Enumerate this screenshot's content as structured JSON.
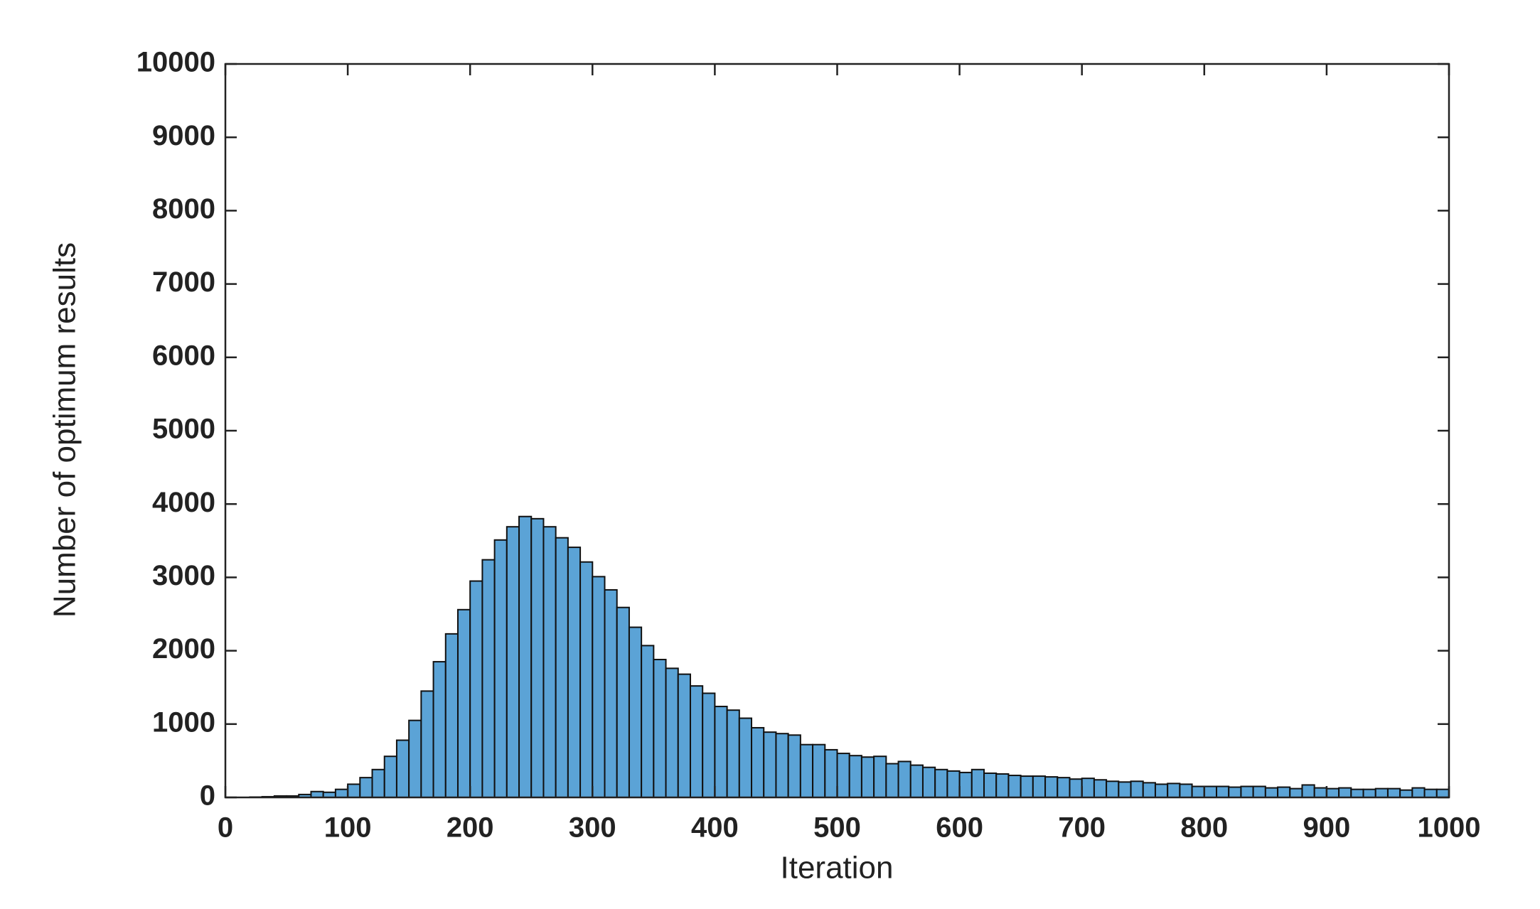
{
  "chart_data": {
    "type": "histogram",
    "xlabel": "Iteration",
    "ylabel": "Number of optimum results",
    "color": "#5ba3d6",
    "bins": [
      0,
      10,
      20,
      30,
      40,
      50,
      60,
      70,
      80,
      90,
      100,
      110,
      120,
      130,
      140,
      150,
      160,
      170,
      180,
      190,
      200,
      210,
      220,
      230,
      240,
      250,
      260,
      270,
      280,
      290,
      300,
      310,
      320,
      330,
      340,
      350,
      360,
      370,
      380,
      390,
      400,
      410,
      420,
      430,
      440,
      450,
      460,
      470,
      480,
      490,
      500,
      510,
      520,
      530,
      540,
      550,
      560,
      570,
      580,
      590,
      600,
      610,
      620,
      630,
      640,
      650,
      660,
      670,
      680,
      690,
      700,
      710,
      720,
      730,
      740,
      750,
      760,
      770,
      780,
      790,
      800,
      810,
      820,
      830,
      840,
      850,
      860,
      870,
      880,
      890,
      900,
      910,
      920,
      930,
      940,
      950,
      960,
      970,
      980,
      990,
      1000
    ],
    "counts": [
      0,
      0,
      5,
      10,
      20,
      20,
      40,
      80,
      70,
      110,
      180,
      270,
      380,
      560,
      780,
      1050,
      1450,
      1850,
      2230,
      2560,
      2950,
      3240,
      3510,
      3690,
      3830,
      3800,
      3690,
      3540,
      3410,
      3210,
      3010,
      2830,
      2590,
      2320,
      2070,
      1880,
      1760,
      1680,
      1520,
      1420,
      1240,
      1190,
      1080,
      950,
      890,
      870,
      850,
      720,
      720,
      650,
      600,
      570,
      550,
      560,
      460,
      490,
      440,
      410,
      380,
      360,
      340,
      380,
      330,
      320,
      300,
      290,
      290,
      280,
      270,
      250,
      260,
      240,
      220,
      210,
      220,
      200,
      180,
      190,
      180,
      150,
      150,
      150,
      140,
      150,
      150,
      130,
      140,
      120,
      170,
      130,
      120,
      130,
      110,
      110,
      120,
      120,
      100,
      130,
      110,
      110
    ],
    "xlim": [
      0,
      1000
    ],
    "xticks": [
      0,
      100,
      200,
      300,
      400,
      500,
      600,
      700,
      800,
      900,
      1000
    ],
    "ylim": [
      0,
      10000
    ],
    "yticks": [
      0,
      1000,
      2000,
      3000,
      4000,
      5000,
      6000,
      7000,
      8000,
      9000,
      10000
    ],
    "grid": false
  }
}
